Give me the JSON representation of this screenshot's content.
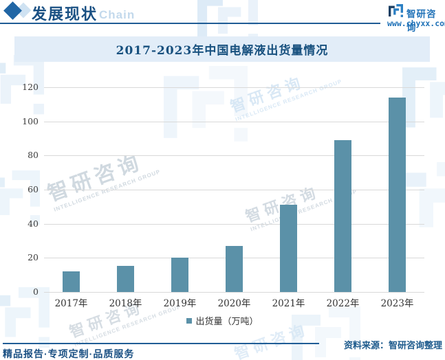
{
  "header": {
    "title": "发展现状",
    "subtitle": "Chain",
    "brand": "智研咨询",
    "website": "www.chyxx.com"
  },
  "chart_data": {
    "type": "bar",
    "title": "2017-2023年中国电解液出货量情况",
    "categories": [
      "2017年",
      "2018年",
      "2019年",
      "2020年",
      "2021年",
      "2022年",
      "2023年"
    ],
    "values": [
      12.2,
      15.3,
      20,
      27,
      51,
      89,
      114
    ],
    "series_name": "出货量（万吨）",
    "xlabel": "",
    "ylabel": "",
    "ylim": [
      0,
      120
    ],
    "ytick_step": 20,
    "grid": true,
    "legend_position": "bottom",
    "bar_color": "#5b91a8"
  },
  "watermark": {
    "cn": "智研咨询",
    "en": "INTELLIGENCE RESEARCH GROUP"
  },
  "footer": {
    "source": "资料来源：智研咨询整理",
    "tagline": "精品报告·专项定制·品质服务"
  },
  "colors": {
    "accent_navy": "#1a5083",
    "brand_blue": "#2273b8",
    "band_bg": "#e2edf8",
    "bar": "#5b91a8",
    "gridline": "#d9d9d9"
  }
}
